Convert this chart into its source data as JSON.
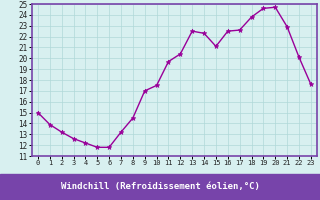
{
  "x": [
    0,
    1,
    2,
    3,
    4,
    5,
    6,
    7,
    8,
    9,
    10,
    11,
    12,
    13,
    14,
    15,
    16,
    17,
    18,
    19,
    20,
    21,
    22,
    23
  ],
  "y": [
    15.0,
    13.9,
    13.2,
    12.6,
    12.2,
    11.8,
    11.8,
    13.2,
    14.5,
    17.0,
    17.5,
    19.7,
    20.4,
    22.5,
    22.3,
    21.1,
    22.5,
    22.6,
    23.8,
    24.6,
    24.7,
    22.9,
    20.1,
    17.6
  ],
  "line_color": "#990099",
  "marker": "*",
  "marker_size": 3.5,
  "bg_color": "#d8f0f0",
  "grid_color": "#b0d8d8",
  "ylim": [
    11,
    25
  ],
  "xlim": [
    -0.5,
    23.5
  ],
  "yticks": [
    11,
    12,
    13,
    14,
    15,
    16,
    17,
    18,
    19,
    20,
    21,
    22,
    23,
    24,
    25
  ],
  "xticks": [
    0,
    1,
    2,
    3,
    4,
    5,
    6,
    7,
    8,
    9,
    10,
    11,
    12,
    13,
    14,
    15,
    16,
    17,
    18,
    19,
    20,
    21,
    22,
    23
  ],
  "xlabel": "Windchill (Refroidissement éolien,°C)",
  "xlabel_color": "#ffffff",
  "xlabel_bg": "#7744aa",
  "tick_fontsize": 5.5,
  "xtick_fontsize": 5.0,
  "label_fontsize": 6.5,
  "spine_color": "#7744aa",
  "line_width": 1.0,
  "fig_width": 3.2,
  "fig_height": 2.0,
  "dpi": 100
}
